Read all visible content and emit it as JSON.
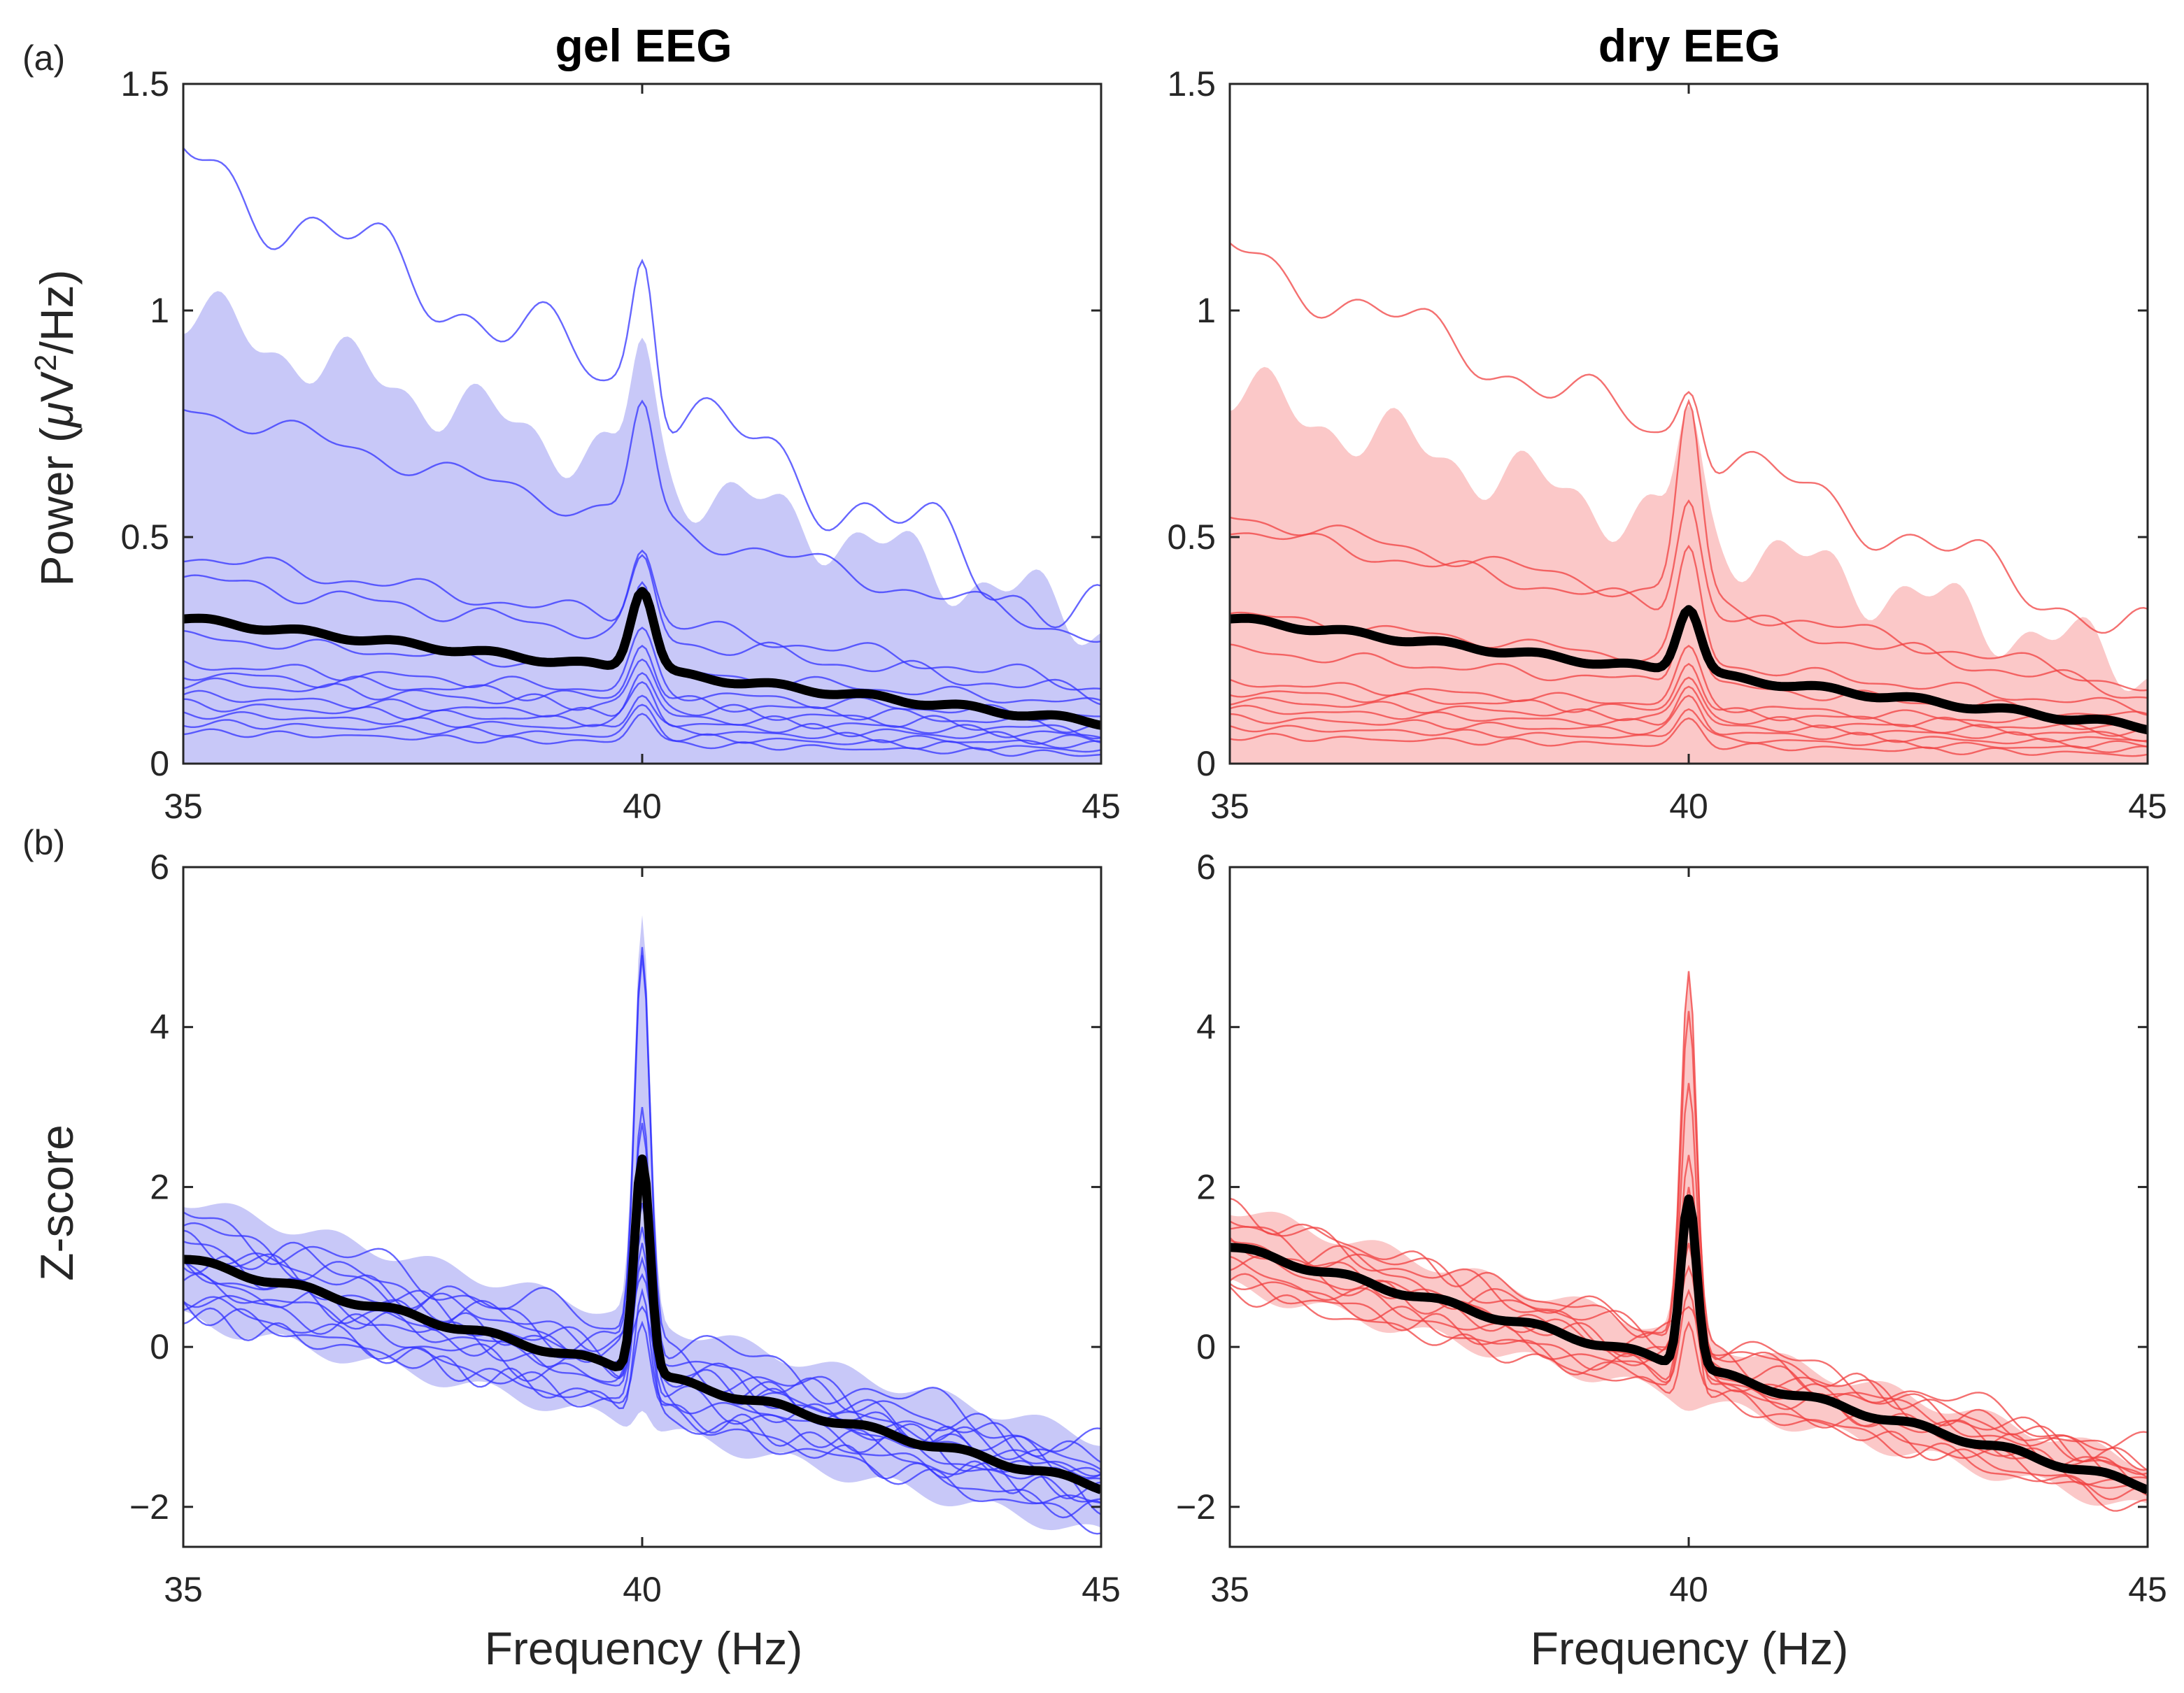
{
  "figure": {
    "panel_letters": [
      "(a)",
      "(b)"
    ],
    "column_titles": [
      "gel EEG",
      "dry EEG"
    ],
    "ylabel_top": {
      "prefix": "Power (",
      "mu": "μ",
      "unit": "V",
      "sup": "2",
      "suffix": "/Hz)"
    },
    "ylabel_bottom": "Z-score",
    "xlabel": "Frequency (Hz)"
  },
  "colors": {
    "gel_line": "#3333ff",
    "gel_fill": "#c8c8f8",
    "dry_line": "#f04040",
    "dry_fill": "#fbc8c8",
    "mean_line": "#000000"
  },
  "chart_data": [
    {
      "id": "gel-power",
      "type": "line",
      "title": "gel EEG",
      "panel": "(a)",
      "xlabel": "",
      "ylabel": "Power (μV²/Hz)",
      "xlim": [
        35,
        45
      ],
      "ylim": [
        0,
        1.5
      ],
      "xticks": [
        35,
        40,
        45
      ],
      "xtick_labels": [
        "35",
        "40",
        "45"
      ],
      "yticks": [
        0,
        0.5,
        1,
        1.5
      ],
      "ytick_labels": [
        "0",
        "0.5",
        "1",
        "1.5"
      ],
      "kind": "power",
      "color": "blue",
      "peak": 40,
      "peak_width": 0.18,
      "band": {
        "upper_start": 0.99,
        "upper_end": 0.31,
        "upper_peak": 0.94,
        "lower": 0.0
      },
      "mean": {
        "name": "mean",
        "start": 0.32,
        "end": 0.09,
        "peak": 0.38
      },
      "subjects": [
        {
          "start": 1.33,
          "end": 0.3,
          "peak": 1.11,
          "wobble": 0.06
        },
        {
          "start": 0.79,
          "end": 0.28,
          "peak": 0.8,
          "wobble": 0.02
        },
        {
          "start": 0.46,
          "end": 0.17,
          "peak": 0.47,
          "wobble": 0.015
        },
        {
          "start": 0.41,
          "end": 0.15,
          "peak": 0.46,
          "wobble": 0.015
        },
        {
          "start": 0.28,
          "end": 0.13,
          "peak": 0.4,
          "wobble": 0.01
        },
        {
          "start": 0.22,
          "end": 0.1,
          "peak": 0.3,
          "wobble": 0.01
        },
        {
          "start": 0.2,
          "end": 0.08,
          "peak": 0.26,
          "wobble": 0.01
        },
        {
          "start": 0.18,
          "end": 0.07,
          "peak": 0.23,
          "wobble": 0.01
        },
        {
          "start": 0.15,
          "end": 0.06,
          "peak": 0.2,
          "wobble": 0.008
        },
        {
          "start": 0.13,
          "end": 0.05,
          "peak": 0.18,
          "wobble": 0.008
        },
        {
          "start": 0.11,
          "end": 0.04,
          "peak": 0.15,
          "wobble": 0.006
        },
        {
          "start": 0.09,
          "end": 0.03,
          "peak": 0.13,
          "wobble": 0.006
        },
        {
          "start": 0.07,
          "end": 0.02,
          "peak": 0.11,
          "wobble": 0.005
        }
      ]
    },
    {
      "id": "dry-power",
      "type": "line",
      "title": "dry EEG",
      "panel": "",
      "xlabel": "",
      "ylabel": "",
      "xlim": [
        35,
        45
      ],
      "ylim": [
        0,
        1.5
      ],
      "xticks": [
        35,
        40,
        45
      ],
      "xtick_labels": [
        "35",
        "40",
        "45"
      ],
      "yticks": [
        0,
        0.5,
        1,
        1.5
      ],
      "ytick_labels": [
        "0",
        "0.5",
        "1",
        "1.5"
      ],
      "kind": "power",
      "color": "red",
      "peak": 40,
      "peak_width": 0.18,
      "band": {
        "upper_start": 0.82,
        "upper_end": 0.21,
        "upper_peak": 0.79,
        "lower": 0.0
      },
      "mean": {
        "name": "mean",
        "start": 0.32,
        "end": 0.08,
        "peak": 0.34
      },
      "subjects": [
        {
          "start": 1.13,
          "end": 0.28,
          "peak": 0.82,
          "wobble": 0.04
        },
        {
          "start": 0.55,
          "end": 0.17,
          "peak": 0.8,
          "wobble": 0.015
        },
        {
          "start": 0.52,
          "end": 0.15,
          "peak": 0.58,
          "wobble": 0.015
        },
        {
          "start": 0.33,
          "end": 0.12,
          "peak": 0.48,
          "wobble": 0.01
        },
        {
          "start": 0.25,
          "end": 0.1,
          "peak": 0.34,
          "wobble": 0.01
        },
        {
          "start": 0.18,
          "end": 0.08,
          "peak": 0.26,
          "wobble": 0.008
        },
        {
          "start": 0.16,
          "end": 0.07,
          "peak": 0.22,
          "wobble": 0.008
        },
        {
          "start": 0.14,
          "end": 0.06,
          "peak": 0.19,
          "wobble": 0.007
        },
        {
          "start": 0.12,
          "end": 0.05,
          "peak": 0.17,
          "wobble": 0.006
        },
        {
          "start": 0.1,
          "end": 0.04,
          "peak": 0.15,
          "wobble": 0.006
        },
        {
          "start": 0.08,
          "end": 0.03,
          "peak": 0.12,
          "wobble": 0.005
        },
        {
          "start": 0.06,
          "end": 0.02,
          "peak": 0.1,
          "wobble": 0.005
        }
      ]
    },
    {
      "id": "gel-zscore",
      "type": "line",
      "title": "",
      "panel": "(b)",
      "xlabel": "Frequency (Hz)",
      "ylabel": "Z-score",
      "xlim": [
        35,
        45
      ],
      "ylim": [
        -2.5,
        6
      ],
      "xticks": [
        35,
        40,
        45
      ],
      "xtick_labels": [
        "35",
        "40",
        "45"
      ],
      "yticks": [
        -2,
        0,
        2,
        4,
        6
      ],
      "ytick_labels": [
        "-2",
        "0",
        "2",
        "4",
        "6"
      ],
      "kind": "zscore",
      "color": "blue",
      "peak": 40,
      "peak_width": 0.12,
      "band": {
        "half_width_start": 0.75,
        "half_width_end": 0.6,
        "upper_peak": 5.4,
        "lower_peak": -0.8
      },
      "mean": {
        "name": "mean",
        "start": 1.1,
        "end": -1.75,
        "peak": 2.35
      },
      "subjects": [
        {
          "start": 1.6,
          "end": -1.3,
          "peak": 5.0,
          "wobble": 0.18
        },
        {
          "start": 1.4,
          "end": -1.5,
          "peak": 4.9,
          "wobble": 0.18
        },
        {
          "start": 1.2,
          "end": -1.6,
          "peak": 3.0,
          "wobble": 0.15
        },
        {
          "start": 1.5,
          "end": -1.9,
          "peak": 2.8,
          "wobble": 0.15
        },
        {
          "start": 0.9,
          "end": -1.7,
          "peak": 2.2,
          "wobble": 0.12
        },
        {
          "start": 1.0,
          "end": -2.0,
          "peak": 1.8,
          "wobble": 0.12
        },
        {
          "start": 0.7,
          "end": -1.8,
          "peak": 1.5,
          "wobble": 0.12
        },
        {
          "start": 0.6,
          "end": -2.2,
          "peak": 1.3,
          "wobble": 0.1
        },
        {
          "start": 0.8,
          "end": -1.5,
          "peak": 1.1,
          "wobble": 0.1
        },
        {
          "start": 1.3,
          "end": -1.4,
          "peak": 0.9,
          "wobble": 0.1
        },
        {
          "start": 0.5,
          "end": -2.1,
          "peak": 0.7,
          "wobble": 0.1
        },
        {
          "start": 1.1,
          "end": -1.6,
          "peak": 0.5,
          "wobble": 0.1
        },
        {
          "start": 0.4,
          "end": -1.9,
          "peak": 0.3,
          "wobble": 0.1
        }
      ]
    },
    {
      "id": "dry-zscore",
      "type": "line",
      "title": "",
      "panel": "",
      "xlabel": "Frequency (Hz)",
      "ylabel": "",
      "xlim": [
        35,
        45
      ],
      "ylim": [
        -2.5,
        6
      ],
      "xticks": [
        35,
        40,
        45
      ],
      "xtick_labels": [
        "35",
        "40",
        "45"
      ],
      "yticks": [
        -2,
        0,
        2,
        4,
        6
      ],
      "ytick_labels": [
        "-2",
        "0",
        "2",
        "4",
        "6"
      ],
      "kind": "zscore",
      "color": "red",
      "peak": 40,
      "peak_width": 0.12,
      "band": {
        "half_width_start": 0.5,
        "half_width_end": 0.3,
        "upper_peak": 4.7,
        "lower_peak": -0.8
      },
      "mean": {
        "name": "mean",
        "start": 1.25,
        "end": -1.75,
        "peak": 1.85
      },
      "subjects": [
        {
          "start": 1.5,
          "end": -1.3,
          "peak": 4.7,
          "wobble": 0.15
        },
        {
          "start": 1.4,
          "end": -1.5,
          "peak": 4.2,
          "wobble": 0.15
        },
        {
          "start": 1.6,
          "end": -1.6,
          "peak": 3.3,
          "wobble": 0.13
        },
        {
          "start": 1.2,
          "end": -1.7,
          "peak": 2.4,
          "wobble": 0.12
        },
        {
          "start": 1.0,
          "end": -1.9,
          "peak": 2.0,
          "wobble": 0.1
        },
        {
          "start": 1.3,
          "end": -1.8,
          "peak": 1.6,
          "wobble": 0.1
        },
        {
          "start": 0.9,
          "end": -2.0,
          "peak": 1.3,
          "wobble": 0.1
        },
        {
          "start": 1.1,
          "end": -1.4,
          "peak": 1.0,
          "wobble": 0.1
        },
        {
          "start": 0.8,
          "end": -1.6,
          "peak": 0.7,
          "wobble": 0.1
        },
        {
          "start": 1.7,
          "end": -1.5,
          "peak": 0.5,
          "wobble": 0.1
        },
        {
          "start": 0.7,
          "end": -1.9,
          "peak": 0.3,
          "wobble": 0.08
        }
      ]
    }
  ]
}
